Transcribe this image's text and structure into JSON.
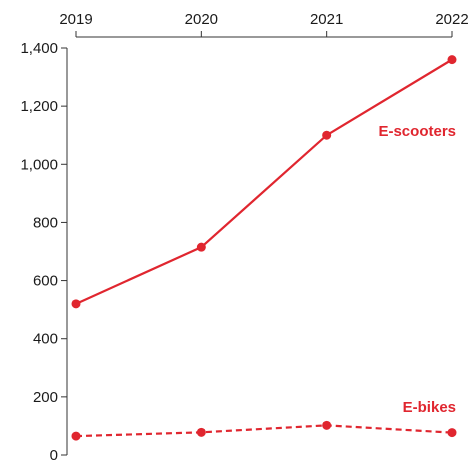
{
  "chart_data": {
    "type": "line",
    "title": "",
    "xlabel": "",
    "ylabel": "",
    "x": [
      "2019",
      "2020",
      "2021",
      "2022"
    ],
    "ylim": [
      0,
      1400
    ],
    "y_ticks": [
      0,
      200,
      400,
      600,
      800,
      1000,
      1200,
      1400
    ],
    "y_tick_labels": [
      "0",
      "200",
      "400",
      "600",
      "800",
      "1,000",
      "1,200",
      "1,400"
    ],
    "x_axis_position": "top",
    "grid": false,
    "legend": "direct labels at right end of each line",
    "series": [
      {
        "name": "E-scooters",
        "values": [
          520,
          715,
          1100,
          1360
        ],
        "style": "solid",
        "color": "#e0262f"
      },
      {
        "name": "E-bikes",
        "values": [
          65,
          78,
          102,
          77
        ],
        "style": "dashed",
        "color": "#e0262f"
      }
    ]
  }
}
